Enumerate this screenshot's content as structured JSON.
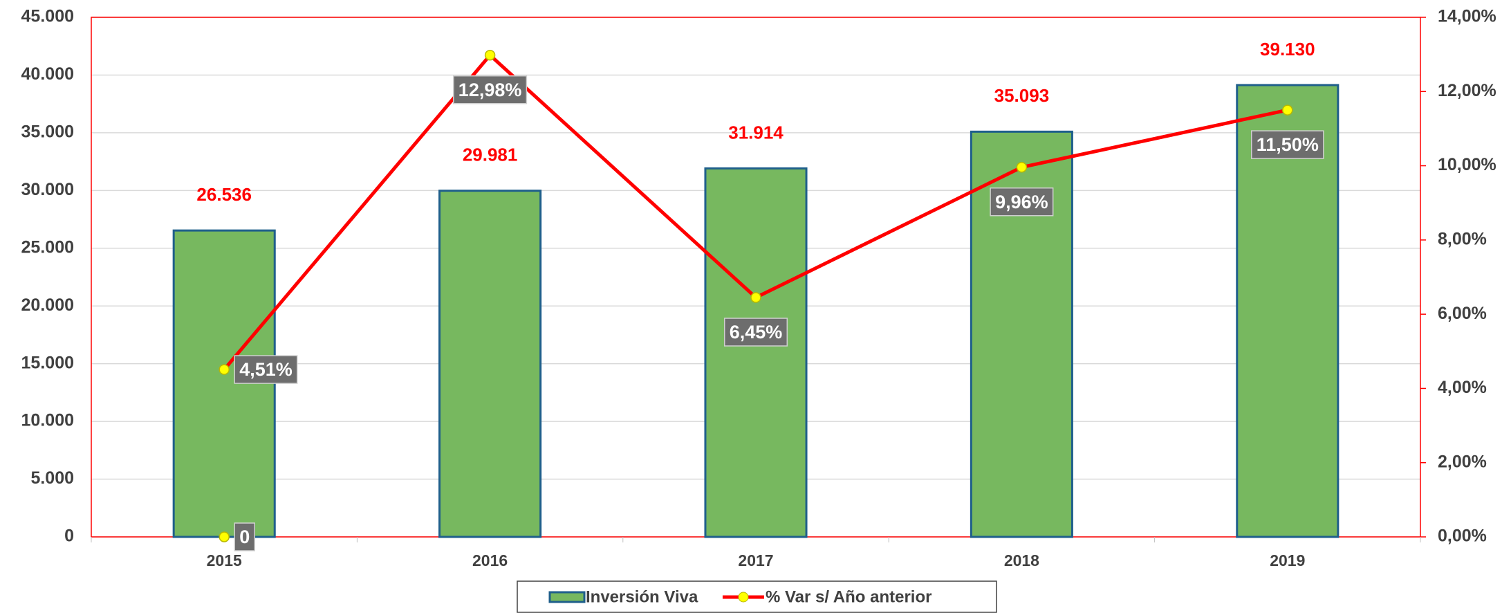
{
  "chart_data": {
    "type": "bar_line",
    "categories": [
      "2015",
      "2016",
      "2017",
      "2018",
      "2019"
    ],
    "series": [
      {
        "name": "Inversión Viva",
        "type": "bar",
        "color": "#77b85f",
        "edge_color": "#1f5f8b",
        "values": [
          26536,
          29981,
          31914,
          35093,
          39130
        ],
        "value_labels": [
          "26.536",
          "29.981",
          "31.914",
          "35.093",
          "39.130"
        ],
        "label_color": "#ff0000"
      },
      {
        "name": "% Var s/ Año anterior",
        "type": "line",
        "axis": "y2",
        "color": "#ff0000",
        "marker_color": "#ffff00",
        "values": [
          4.51,
          12.98,
          6.45,
          9.96,
          11.5
        ],
        "value_labels": [
          "4,51%",
          "12,98%",
          "6,45%",
          "9,96%",
          "11,50%"
        ]
      },
      {
        "type": "line",
        "axis": "y2",
        "color": "#ff0000",
        "marker_color": "#ffff00",
        "values": [
          0,
          null,
          null,
          null,
          null
        ],
        "value_labels": [
          "0",
          null,
          null,
          null,
          null
        ]
      }
    ],
    "ylim": [
      0,
      45000
    ],
    "yticks": [
      0,
      {
        "value": 5000,
        "label": "5.000"
      },
      {
        "value": 10000,
        "label": "10.000"
      },
      {
        "value": 15000,
        "label": "15.000"
      },
      {
        "value": 20000,
        "label": "20.000"
      },
      {
        "value": 25000,
        "label": "25.000"
      },
      {
        "value": 30000,
        "label": "30.000"
      },
      {
        "value": 35000,
        "label": "35.000"
      },
      {
        "value": 40000,
        "label": "40.000"
      },
      {
        "value": 45000,
        "label": "45.000"
      }
    ],
    "y2lim": [
      0,
      14
    ],
    "y2ticks": [
      {
        "value": 0,
        "label": "0,00%"
      },
      {
        "value": 2,
        "label": "2,00%"
      },
      {
        "value": 4,
        "label": "4,00%"
      },
      {
        "value": 6,
        "label": "6,00%"
      },
      {
        "value": 8,
        "label": "8,00%"
      },
      {
        "value": 10,
        "label": "10,00%"
      },
      {
        "value": 12,
        "label": "12,00%"
      },
      {
        "value": 14,
        "label": "14,00%"
      }
    ],
    "grid": true,
    "legend": "bottom"
  }
}
